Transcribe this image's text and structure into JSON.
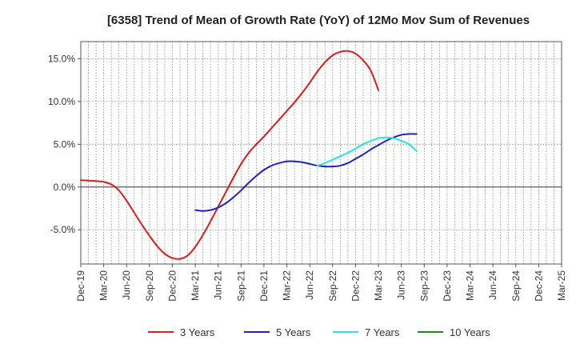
{
  "chart_data": {
    "type": "line",
    "title": "[6358]  Trend of Mean of Growth Rate (YoY) of 12Mo Mov Sum of Revenues",
    "xlabel": "",
    "ylabel": "",
    "ylim": [
      -9,
      17
    ],
    "y_ticks": [
      -5,
      0,
      5,
      10,
      15
    ],
    "y_tick_labels": [
      "-5.0%",
      "0.0%",
      "5.0%",
      "10.0%",
      "15.0%"
    ],
    "x_tick_labels": [
      "Dec-19",
      "Mar-20",
      "Jun-20",
      "Sep-20",
      "Dec-20",
      "Mar-21",
      "Jun-21",
      "Sep-21",
      "Dec-21",
      "Mar-22",
      "Jun-22",
      "Sep-22",
      "Dec-22",
      "Mar-23",
      "Jun-23",
      "Sep-23",
      "Dec-23",
      "Mar-24",
      "Jun-24",
      "Sep-24",
      "Dec-24",
      "Mar-25"
    ],
    "grid": true,
    "legend_position": "bottom",
    "series": [
      {
        "name": "3 Years",
        "color": "#e31a1c",
        "start_index": 0,
        "values": [
          0.8,
          0.75,
          0.7,
          0.6,
          0.3,
          -0.4,
          -1.6,
          -3.0,
          -4.4,
          -5.7,
          -6.9,
          -7.8,
          -8.3,
          -8.4,
          -8.0,
          -7.0,
          -5.6,
          -4.0,
          -2.3,
          -0.6,
          1.1,
          2.7,
          4.0,
          5.0,
          5.9,
          6.9,
          7.9,
          8.9,
          9.9,
          11.0,
          12.2,
          13.5,
          14.6,
          15.4,
          15.8,
          15.9,
          15.6,
          14.8,
          13.6,
          11.3
        ]
      },
      {
        "name": "5 Years",
        "color": "#1f1fcc",
        "start_index": 15,
        "values": [
          -2.7,
          -2.8,
          -2.7,
          -2.4,
          -1.9,
          -1.2,
          -0.4,
          0.5,
          1.3,
          2.0,
          2.5,
          2.8,
          3.0,
          3.0,
          2.9,
          2.7,
          2.5,
          2.4,
          2.4,
          2.5,
          2.8,
          3.3,
          3.8,
          4.4,
          4.9,
          5.4,
          5.8,
          6.1,
          6.2,
          6.2
        ]
      },
      {
        "name": "7 Years",
        "color": "#22e5e5",
        "start_index": 31,
        "values": [
          2.5,
          2.8,
          3.2,
          3.6,
          4.0,
          4.5,
          5.0,
          5.4,
          5.7,
          5.8,
          5.7,
          5.4,
          5.0,
          4.2
        ]
      },
      {
        "name": "10 Years",
        "color": "#1a8c1a",
        "start_index": 0,
        "values": []
      }
    ]
  }
}
